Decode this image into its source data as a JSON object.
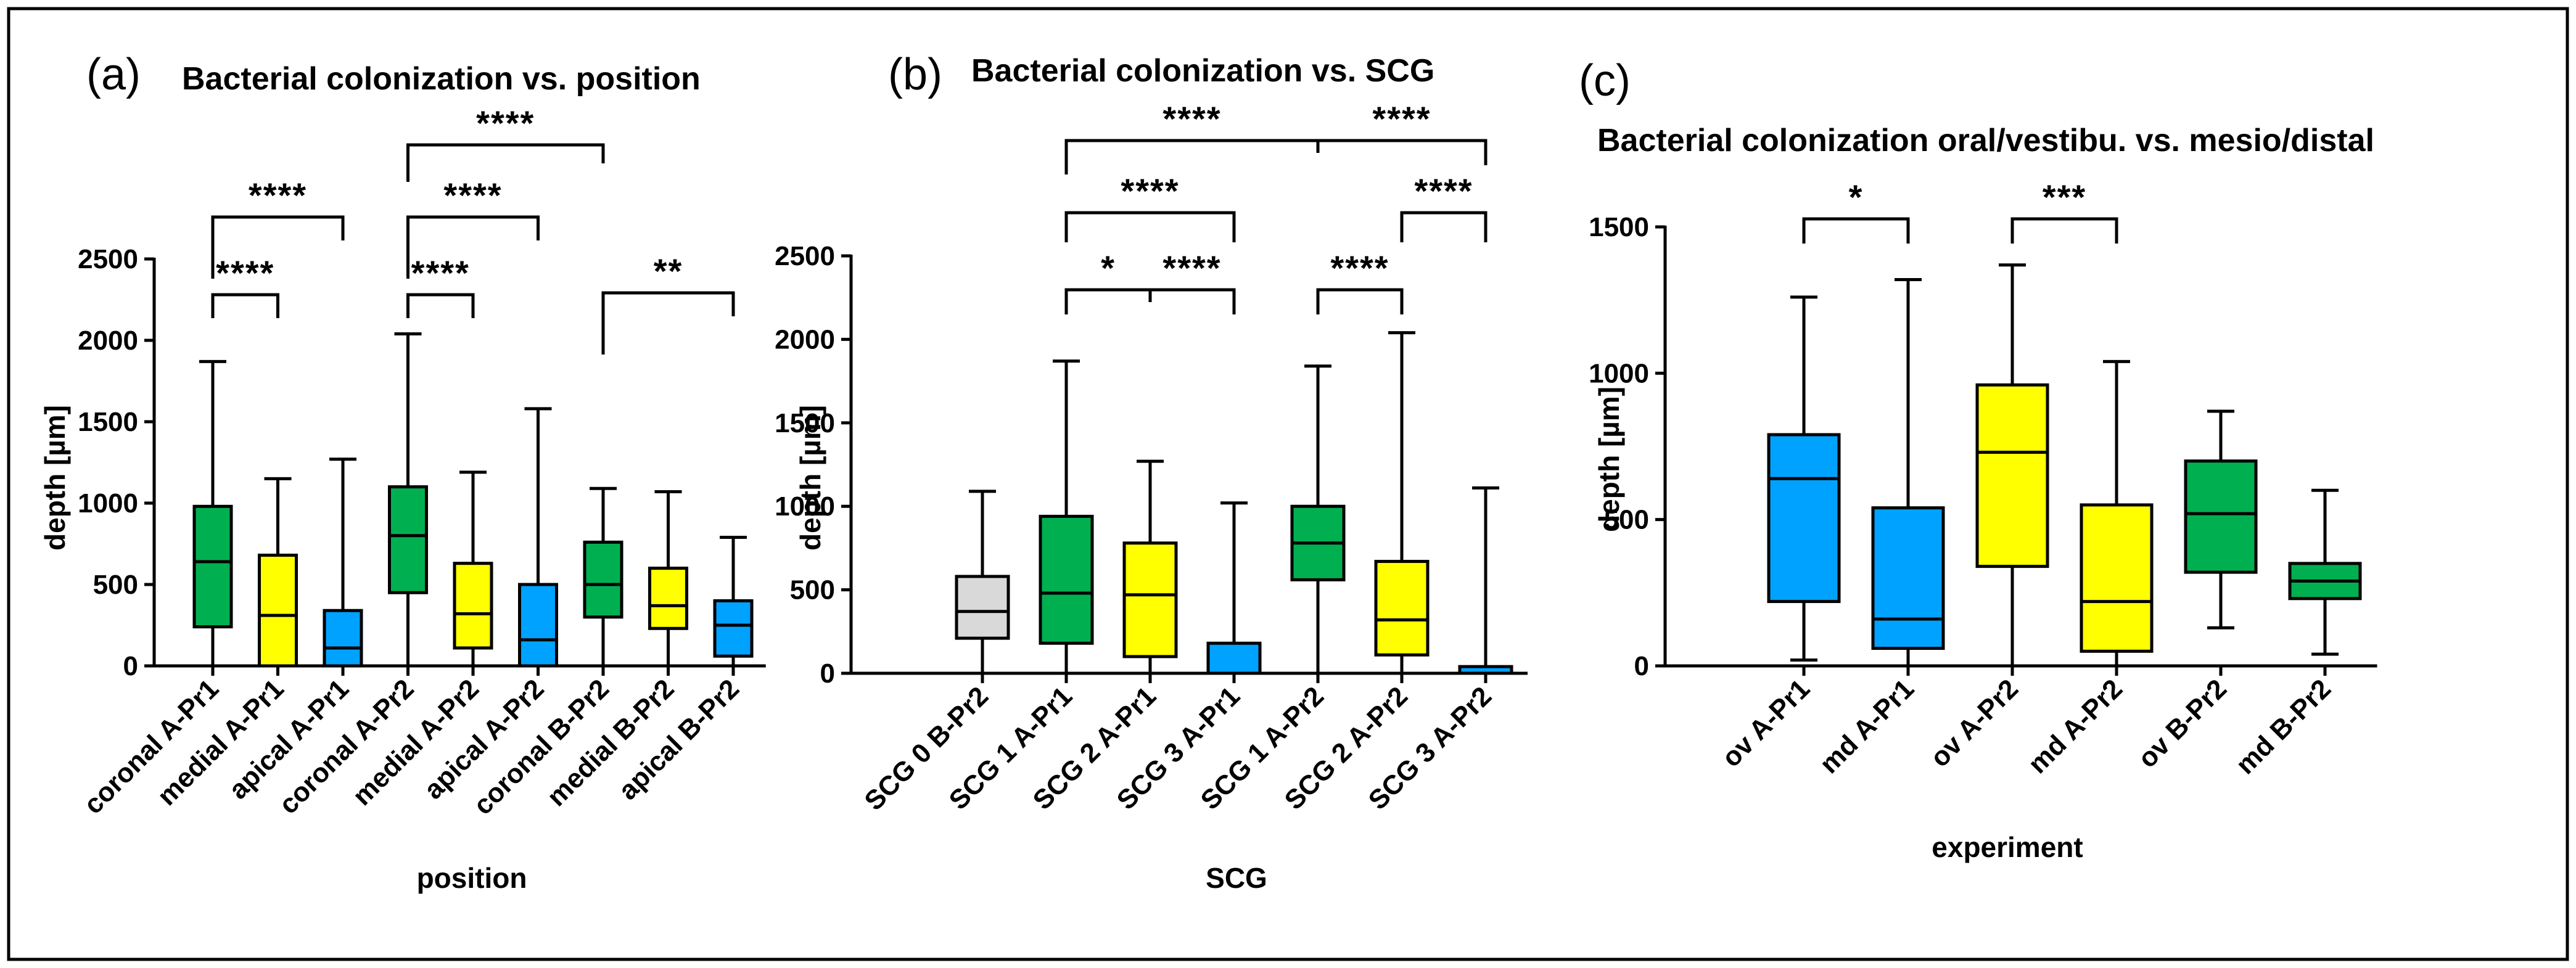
{
  "chart_data": [
    {
      "type": "box",
      "panel_label": "(a)",
      "title": "Bacterial colonization vs. position",
      "xlabel": "position",
      "ylabel": "depth [µm]",
      "ylim": [
        0,
        2500
      ],
      "yticks": [
        0,
        500,
        1000,
        1500,
        2000,
        2500
      ],
      "categories": [
        "coronal A-Pr1",
        "medial A-Pr1",
        "apical A-Pr1",
        "coronal A-Pr2",
        "medial A-Pr2",
        "apical A-Pr2",
        "coronal B-Pr2",
        "medial B-Pr2",
        "apical B-Pr2"
      ],
      "boxes": [
        {
          "min": 0,
          "q1": 240,
          "median": 640,
          "q3": 980,
          "max": 1870,
          "color": "#00B050"
        },
        {
          "min": 0,
          "q1": 0,
          "median": 310,
          "q3": 680,
          "max": 1150,
          "color": "#FFFF00"
        },
        {
          "min": 0,
          "q1": 0,
          "median": 110,
          "q3": 340,
          "max": 1270,
          "color": "#00A2FF"
        },
        {
          "min": 0,
          "q1": 450,
          "median": 800,
          "q3": 1100,
          "max": 2040,
          "color": "#00B050"
        },
        {
          "min": 0,
          "q1": 110,
          "median": 320,
          "q3": 630,
          "max": 1190,
          "color": "#FFFF00"
        },
        {
          "min": 0,
          "q1": 0,
          "median": 160,
          "q3": 500,
          "max": 1580,
          "color": "#00A2FF"
        },
        {
          "min": 0,
          "q1": 300,
          "median": 500,
          "q3": 760,
          "max": 1090,
          "color": "#00B050"
        },
        {
          "min": 0,
          "q1": 230,
          "median": 370,
          "q3": 600,
          "max": 1070,
          "color": "#FFFF00"
        },
        {
          "min": 0,
          "q1": 60,
          "median": 250,
          "q3": 400,
          "max": 790,
          "color": "#00A2FF"
        }
      ],
      "annotations": [
        {
          "from": 0,
          "to": 1,
          "label": "****"
        },
        {
          "from": 0,
          "to": 2,
          "label": "****"
        },
        {
          "from": 3,
          "to": 4,
          "label": "****"
        },
        {
          "from": 3,
          "to": 5,
          "label": "****"
        },
        {
          "from": 3,
          "to": 6,
          "label": "****"
        },
        {
          "from": 6,
          "to": 8,
          "label": "**"
        }
      ]
    },
    {
      "type": "box",
      "panel_label": "(b)",
      "title": "Bacterial colonization vs. SCG",
      "xlabel": "SCG",
      "ylabel": "depth [µm]",
      "ylim": [
        0,
        2500
      ],
      "yticks": [
        0,
        500,
        1000,
        1500,
        2000,
        2500
      ],
      "categories": [
        "SCG 0 B-Pr2",
        "SCG 1 A-Pr1",
        "SCG 2 A-Pr1",
        "SCG 3 A-Pr1",
        "SCG 1 A-Pr2",
        "SCG 2 A-Pr2",
        "SCG 3 A-Pr2"
      ],
      "boxes": [
        {
          "min": 0,
          "q1": 210,
          "median": 370,
          "q3": 580,
          "max": 1090,
          "color": "#D9D9D9"
        },
        {
          "min": 0,
          "q1": 180,
          "median": 480,
          "q3": 940,
          "max": 1870,
          "color": "#00B050"
        },
        {
          "min": 0,
          "q1": 100,
          "median": 470,
          "q3": 780,
          "max": 1270,
          "color": "#FFFF00"
        },
        {
          "min": 0,
          "q1": 0,
          "median": 0,
          "q3": 180,
          "max": 1020,
          "color": "#00A2FF"
        },
        {
          "min": 0,
          "q1": 560,
          "median": 780,
          "q3": 1000,
          "max": 1840,
          "color": "#00B050"
        },
        {
          "min": 0,
          "q1": 110,
          "median": 320,
          "q3": 670,
          "max": 2040,
          "color": "#FFFF00"
        },
        {
          "min": 0,
          "q1": 0,
          "median": 0,
          "q3": 40,
          "max": 1110,
          "color": "#00A2FF"
        }
      ],
      "annotations": [
        {
          "from": 1,
          "to": 2,
          "label": "*"
        },
        {
          "from": 2,
          "to": 3,
          "label": "****"
        },
        {
          "from": 1,
          "to": 3,
          "label": "****"
        },
        {
          "from": 1,
          "to": 4,
          "label": "****"
        },
        {
          "from": 4,
          "to": 5,
          "label": "****"
        },
        {
          "from": 5,
          "to": 6,
          "label": "****"
        },
        {
          "from": 4,
          "to": 6,
          "label": "****"
        }
      ]
    },
    {
      "type": "box",
      "panel_label": "(c)",
      "title": "Bacterial colonization oral/vestibu. vs. mesio/distal",
      "xlabel": "experiment",
      "ylabel": "depth [µm]",
      "ylim": [
        0,
        1500
      ],
      "yticks": [
        0,
        500,
        1000,
        1500
      ],
      "categories": [
        "ov A-Pr1",
        "md A-Pr1",
        "ov A-Pr2",
        "md A-Pr2",
        "ov B-Pr2",
        "md B-Pr2"
      ],
      "boxes": [
        {
          "min": 20,
          "q1": 220,
          "median": 640,
          "q3": 790,
          "max": 1260,
          "color": "#00A2FF"
        },
        {
          "min": 0,
          "q1": 60,
          "median": 160,
          "q3": 540,
          "max": 1320,
          "color": "#00A2FF"
        },
        {
          "min": 0,
          "q1": 340,
          "median": 730,
          "q3": 960,
          "max": 1370,
          "color": "#FFFF00"
        },
        {
          "min": 0,
          "q1": 50,
          "median": 220,
          "q3": 550,
          "max": 1040,
          "color": "#FFFF00"
        },
        {
          "min": 130,
          "q1": 320,
          "median": 520,
          "q3": 700,
          "max": 870,
          "color": "#00B050"
        },
        {
          "min": 40,
          "q1": 230,
          "median": 290,
          "q3": 350,
          "max": 600,
          "color": "#00B050"
        }
      ],
      "annotations": [
        {
          "from": 0,
          "to": 1,
          "label": "*"
        },
        {
          "from": 2,
          "to": 3,
          "label": "***"
        }
      ]
    }
  ]
}
